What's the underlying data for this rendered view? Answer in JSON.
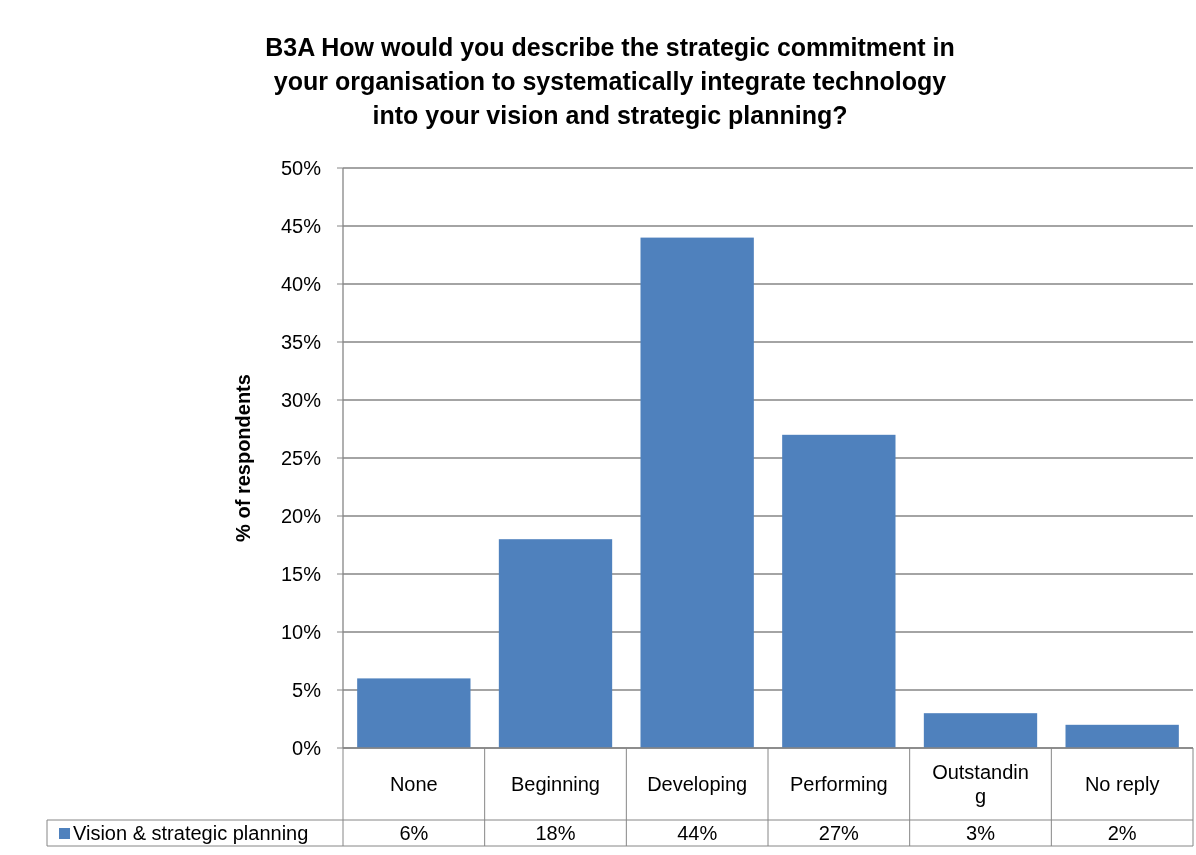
{
  "chart_data": {
    "type": "bar",
    "title": "B3A How would you describe the strategic commitment in your organisation to systematically integrate technology into your vision and strategic planning?",
    "ylabel": "% of respondents",
    "categories": [
      "None",
      "Beginning",
      "Developing",
      "Performing",
      "Outstanding",
      "No reply"
    ],
    "series": [
      {
        "name": "Vision & strategic planning",
        "color": "#4f81bd",
        "values": [
          6,
          18,
          44,
          27,
          3,
          2
        ],
        "value_labels": [
          "6%",
          "18%",
          "44%",
          "27%",
          "3%",
          "2%"
        ]
      }
    ],
    "ylim": [
      0,
      50
    ],
    "yticks": [
      {
        "value": 0,
        "label": "0%"
      },
      {
        "value": 5,
        "label": "5%"
      },
      {
        "value": 10,
        "label": "10%"
      },
      {
        "value": 15,
        "label": "15%"
      },
      {
        "value": 20,
        "label": "20%"
      },
      {
        "value": 25,
        "label": "25%"
      },
      {
        "value": 30,
        "label": "30%"
      },
      {
        "value": 35,
        "label": "35%"
      },
      {
        "value": 40,
        "label": "40%"
      },
      {
        "value": 45,
        "label": "45%"
      },
      {
        "value": 50,
        "label": "50%"
      }
    ],
    "grid": "y",
    "legend": "bottom"
  }
}
